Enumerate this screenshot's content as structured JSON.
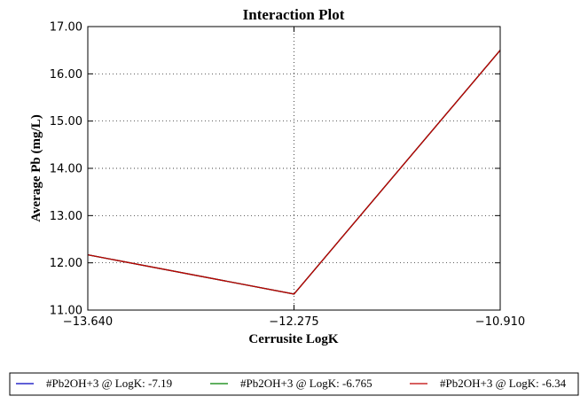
{
  "chart_data": {
    "type": "line",
    "title": "Interaction Plot",
    "xlabel": "Cerrusite LogK",
    "ylabel": "Average Pb (mg/L)",
    "x": [
      -13.64,
      -12.275,
      -10.91
    ],
    "x_tick_labels": [
      "−13.640",
      "−12.275",
      "−10.910"
    ],
    "xlim": [
      -13.64,
      -10.91
    ],
    "ylim": [
      11.0,
      17.0
    ],
    "y_ticks": [
      11,
      12,
      13,
      14,
      15,
      16,
      17
    ],
    "y_tick_labels": [
      "11.00",
      "12.00",
      "13.00",
      "14.00",
      "15.00",
      "16.00",
      "17.00"
    ],
    "grid": true,
    "legend_position": "bottom",
    "series": [
      {
        "name": "#Pb2OH+3 @ LogK: -7.19",
        "color": "#0000bf",
        "values": [
          12.17,
          11.34,
          16.5
        ]
      },
      {
        "name": "#Pb2OH+3 @ LogK: -6.765",
        "color": "#008000",
        "values": [
          12.17,
          11.34,
          16.5
        ]
      },
      {
        "name": "#Pb2OH+3 @ LogK: -6.34",
        "color": "#bf0000",
        "values": [
          12.17,
          11.34,
          16.5
        ]
      }
    ]
  }
}
